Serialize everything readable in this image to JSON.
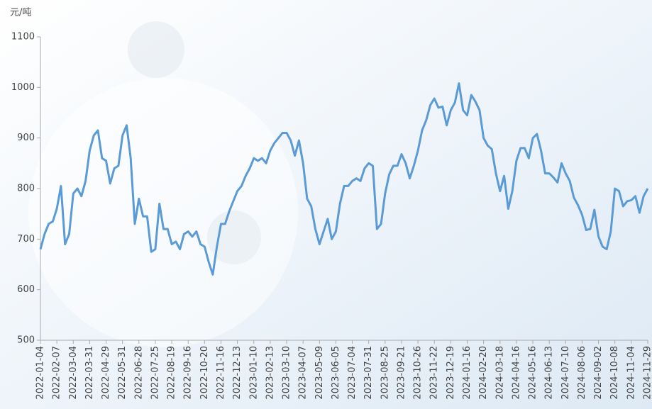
{
  "chart_data": {
    "type": "line",
    "y_label": "元/吨",
    "categories": [
      "2022-01-04",
      null,
      null,
      null,
      "2022-02-07",
      null,
      null,
      null,
      "2022-03-04",
      null,
      null,
      null,
      "2022-03-31",
      null,
      null,
      null,
      "2022-04-29",
      null,
      null,
      null,
      "2022-05-31",
      null,
      null,
      null,
      "2022-06-28",
      null,
      null,
      null,
      "2022-07-25",
      null,
      null,
      null,
      "2022-08-19",
      null,
      null,
      null,
      "2022-09-16",
      null,
      null,
      null,
      "2022-10-20",
      null,
      null,
      null,
      "2022-11-16",
      null,
      null,
      null,
      "2022-12-13",
      null,
      null,
      null,
      "2023-01-10",
      null,
      null,
      null,
      "2023-02-13",
      null,
      null,
      null,
      "2023-03-10",
      null,
      null,
      null,
      "2023-04-07",
      null,
      null,
      null,
      "2023-05-09",
      null,
      null,
      null,
      "2023-06-05",
      null,
      null,
      null,
      "2023-07-04",
      null,
      null,
      null,
      "2023-07-31",
      null,
      null,
      null,
      "2023-08-25",
      null,
      null,
      null,
      "2023-09-21",
      null,
      null,
      null,
      "2023-10-26",
      null,
      null,
      null,
      "2023-11-22",
      null,
      null,
      null,
      "2023-12-19",
      null,
      null,
      null,
      "2024-01-16",
      null,
      null,
      null,
      "2024-02-20",
      null,
      null,
      null,
      "2024-03-18",
      null,
      null,
      null,
      "2024-04-16",
      null,
      null,
      null,
      "2024-05-16",
      null,
      null,
      null,
      "2024-06-13",
      null,
      null,
      null,
      "2024-07-10",
      null,
      null,
      null,
      "2024-08-06",
      null,
      null,
      null,
      "2024-09-02",
      null,
      null,
      null,
      "2024-10-08",
      null,
      null,
      null,
      "2024-11-04",
      null,
      null,
      null,
      "2024-11-29"
    ],
    "series": [
      {
        "color": "#5b9bd5",
        "values": [
          680,
          710,
          730,
          735,
          760,
          805,
          690,
          710,
          790,
          800,
          785,
          815,
          875,
          905,
          915,
          860,
          855,
          810,
          840,
          845,
          905,
          925,
          860,
          730,
          780,
          745,
          745,
          675,
          680,
          770,
          720,
          720,
          690,
          695,
          680,
          710,
          715,
          705,
          715,
          690,
          685,
          655,
          630,
          685,
          730,
          730,
          755,
          775,
          795,
          805,
          825,
          840,
          860,
          855,
          860,
          850,
          875,
          890,
          900,
          910,
          910,
          895,
          865,
          895,
          850,
          780,
          765,
          720,
          690,
          715,
          740,
          700,
          715,
          770,
          805,
          805,
          815,
          820,
          815,
          840,
          850,
          845,
          720,
          730,
          790,
          828,
          845,
          845,
          868,
          850,
          820,
          845,
          875,
          915,
          935,
          965,
          978,
          960,
          962,
          925,
          955,
          970,
          1008,
          955,
          945,
          985,
          972,
          955,
          900,
          885,
          878,
          830,
          795,
          825,
          760,
          795,
          855,
          880,
          880,
          860,
          900,
          908,
          875,
          830,
          830,
          822,
          812,
          850,
          830,
          815,
          782,
          767,
          748,
          718,
          720,
          758,
          705,
          685,
          680,
          715,
          800,
          795,
          765,
          775,
          777,
          785,
          752,
          785,
          800
        ]
      }
    ],
    "ylim": [
      500,
      1100
    ],
    "yticks": [
      500,
      600,
      700,
      800,
      900,
      1000,
      1100
    ]
  }
}
